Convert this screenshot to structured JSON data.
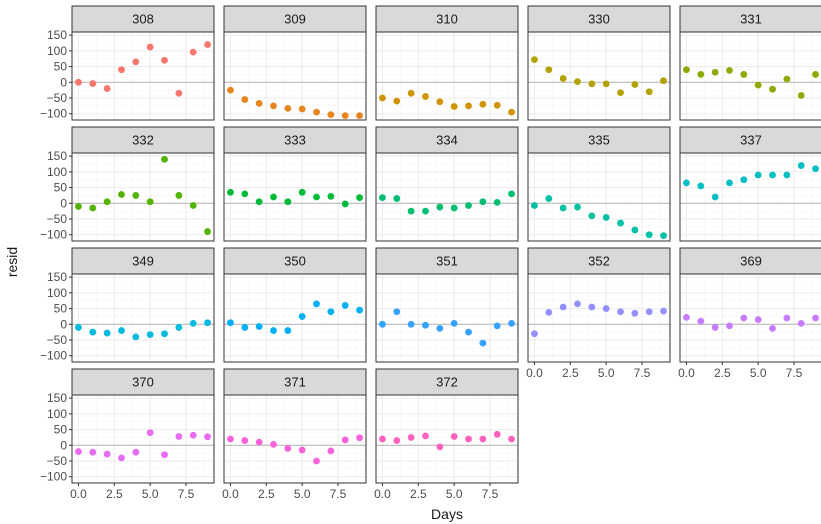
{
  "chart_data": {
    "type": "scatter",
    "layout": "facet_wrap",
    "xlabel": "Days",
    "ylabel": "resid",
    "xlim": [
      -0.45,
      9.45
    ],
    "ylim": [
      -120,
      160
    ],
    "x_ticks": [
      0,
      2.5,
      5,
      7.5
    ],
    "x_tick_labels": [
      "0.0",
      "2.5",
      "5.0",
      "7.5"
    ],
    "y_ticks": [
      -100,
      -50,
      0,
      50,
      100,
      150
    ],
    "y_tick_labels": [
      "−100",
      "−50",
      "0",
      "50",
      "100",
      "150"
    ],
    "grid": true,
    "zero_reference_line": 0,
    "x": [
      0,
      1,
      2,
      3,
      4,
      5,
      6,
      7,
      8,
      9
    ],
    "panels": [
      {
        "subject": "308",
        "color": "#F8766D",
        "values": [
          0,
          -4,
          -20,
          40,
          65,
          112,
          70,
          -35,
          96,
          120
        ]
      },
      {
        "subject": "309",
        "color": "#E7851E",
        "values": [
          -25,
          -55,
          -67,
          -75,
          -83,
          -85,
          -95,
          -103,
          -106,
          -106
        ]
      },
      {
        "subject": "310",
        "color": "#D09400",
        "values": [
          -50,
          -60,
          -35,
          -45,
          -62,
          -77,
          -75,
          -70,
          -73,
          -95
        ]
      },
      {
        "subject": "330",
        "color": "#B2A100",
        "values": [
          72,
          40,
          12,
          2,
          -5,
          -5,
          -33,
          -7,
          -30,
          5
        ]
      },
      {
        "subject": "331",
        "color": "#8BAB00",
        "values": [
          40,
          25,
          32,
          38,
          25,
          -9,
          -22,
          10,
          -42,
          25
        ]
      },
      {
        "subject": "332",
        "color": "#53B400",
        "values": [
          -10,
          -15,
          5,
          28,
          25,
          5,
          140,
          25,
          -7,
          -90
        ]
      },
      {
        "subject": "333",
        "color": "#00BA38",
        "values": [
          35,
          30,
          5,
          20,
          5,
          35,
          20,
          22,
          -2,
          18
        ]
      },
      {
        "subject": "334",
        "color": "#00BE70",
        "values": [
          18,
          15,
          -25,
          -25,
          -12,
          -15,
          -7,
          5,
          3,
          30
        ]
      },
      {
        "subject": "335",
        "color": "#00C1A3",
        "values": [
          -7,
          15,
          -15,
          -12,
          -40,
          -45,
          -63,
          -85,
          -100,
          -103
        ]
      },
      {
        "subject": "337",
        "color": "#00BFC4",
        "values": [
          65,
          55,
          20,
          65,
          75,
          90,
          90,
          90,
          120,
          110
        ]
      },
      {
        "subject": "349",
        "color": "#00BAE0",
        "values": [
          -10,
          -25,
          -28,
          -20,
          -40,
          -33,
          -30,
          -10,
          3,
          5
        ]
      },
      {
        "subject": "350",
        "color": "#00B0F6",
        "values": [
          5,
          -10,
          -7,
          -20,
          -20,
          25,
          65,
          40,
          60,
          45
        ]
      },
      {
        "subject": "351",
        "color": "#35A2FF",
        "values": [
          0,
          40,
          0,
          -3,
          -13,
          3,
          -25,
          -60,
          -5,
          3
        ]
      },
      {
        "subject": "352",
        "color": "#9590FF",
        "values": [
          -30,
          38,
          55,
          65,
          55,
          50,
          40,
          35,
          40,
          42
        ]
      },
      {
        "subject": "369",
        "color": "#C77CFF",
        "values": [
          22,
          10,
          -10,
          -5,
          20,
          15,
          -13,
          20,
          3,
          20
        ]
      },
      {
        "subject": "370",
        "color": "#E76BF3",
        "values": [
          -20,
          -22,
          -28,
          -40,
          -22,
          40,
          -30,
          28,
          32,
          27
        ]
      },
      {
        "subject": "371",
        "color": "#FA62DB",
        "values": [
          20,
          15,
          10,
          3,
          -10,
          -15,
          -50,
          -18,
          17,
          24
        ]
      },
      {
        "subject": "372",
        "color": "#FF62BC",
        "values": [
          20,
          15,
          25,
          30,
          -5,
          28,
          20,
          20,
          35,
          20
        ]
      }
    ]
  }
}
